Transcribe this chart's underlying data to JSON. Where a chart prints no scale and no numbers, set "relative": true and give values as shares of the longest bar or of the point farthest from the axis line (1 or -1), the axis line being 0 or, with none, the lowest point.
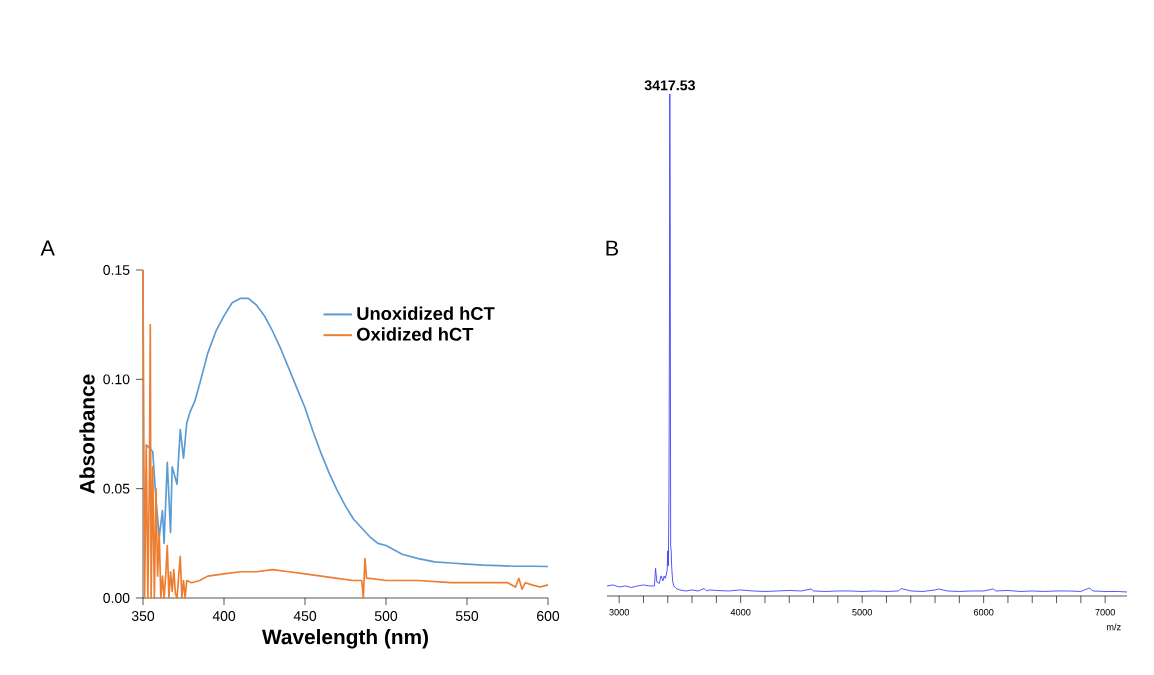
{
  "chart_data": [
    {
      "type": "line",
      "xlabel": "Wavelength (nm)",
      "ylabel": "Absorbance",
      "xlim": [
        350,
        600
      ],
      "ylim": [
        0,
        0.15
      ],
      "xticks": [
        350,
        400,
        450,
        500,
        550,
        600
      ],
      "yticks": [
        {
          "value": 0,
          "label": "0.00"
        },
        {
          "value": 0.05,
          "label": "0.05"
        },
        {
          "value": 0.1,
          "label": "0.10"
        },
        {
          "value": 0.15,
          "label": "0.15"
        }
      ],
      "legend": "top right",
      "annotations": [
        "A"
      ],
      "series": [
        {
          "name": "Unoxidized hCT",
          "color": "#5b9bd5",
          "x": [
            352,
            356,
            358,
            360,
            362,
            363,
            365,
            367,
            368,
            371,
            373,
            375,
            377,
            379,
            382,
            385,
            390,
            395,
            400,
            405,
            410,
            415,
            420,
            425,
            430,
            435,
            440,
            445,
            450,
            455,
            460,
            465,
            470,
            475,
            480,
            485,
            490,
            495,
            500,
            510,
            520,
            530,
            540,
            550,
            560,
            570,
            580,
            590,
            600
          ],
          "values": [
            0.07,
            0.067,
            0.045,
            0.028,
            0.04,
            0.025,
            0.062,
            0.03,
            0.06,
            0.052,
            0.077,
            0.064,
            0.08,
            0.085,
            0.09,
            0.098,
            0.112,
            0.122,
            0.129,
            0.135,
            0.137,
            0.137,
            0.134,
            0.129,
            0.122,
            0.114,
            0.105,
            0.096,
            0.087,
            0.076,
            0.066,
            0.057,
            0.049,
            0.042,
            0.036,
            0.032,
            0.028,
            0.025,
            0.024,
            0.02,
            0.018,
            0.0165,
            0.016,
            0.0155,
            0.015,
            0.0148,
            0.0145,
            0.0145,
            0.0144
          ]
        },
        {
          "name": "Oxidized hCT",
          "color": "#ed7d31",
          "x": [
            350,
            351,
            352,
            353,
            354,
            354.5,
            355,
            356,
            357,
            358,
            359,
            360,
            361,
            362,
            363,
            364,
            365,
            366,
            367,
            368,
            369,
            370,
            371,
            372,
            373,
            374,
            375,
            376,
            377,
            380,
            385,
            390,
            400,
            410,
            420,
            430,
            440,
            450,
            460,
            470,
            480,
            485,
            486,
            487,
            488,
            490,
            500,
            520,
            540,
            560,
            575,
            580,
            582,
            584,
            586,
            590,
            595,
            600
          ],
          "values": [
            0.15,
            0,
            0.07,
            0,
            0.06,
            0.125,
            0,
            0.06,
            0,
            0.05,
            0.01,
            0.03,
            0,
            0.01,
            0,
            0.01,
            0.024,
            0,
            0.012,
            0.003,
            0.013,
            0.002,
            0,
            0.01,
            0.019,
            0,
            0.008,
            0,
            0.008,
            0.007,
            0.008,
            0.01,
            0.011,
            0.012,
            0.012,
            0.013,
            0.012,
            0.011,
            0.01,
            0.009,
            0.008,
            0.008,
            0,
            0.018,
            0.009,
            0.009,
            0.008,
            0.008,
            0.007,
            0.007,
            0.007,
            0.005,
            0.009,
            0.004,
            0.007,
            0.006,
            0.005,
            0.006
          ]
        }
      ]
    },
    {
      "type": "line",
      "relative": true,
      "xlabel": "m/z",
      "xlim": [
        2900,
        7180
      ],
      "xticks": [
        3000,
        {
          "value": 3200,
          "label": null
        },
        {
          "value": 3400,
          "label": null
        },
        {
          "value": 3600,
          "label": null
        },
        {
          "value": 3800,
          "label": null
        },
        4000,
        {
          "value": 4200,
          "label": null
        },
        {
          "value": 4400,
          "label": null
        },
        {
          "value": 4600,
          "label": null
        },
        {
          "value": 4800,
          "label": null
        },
        5000,
        {
          "value": 5200,
          "label": null
        },
        {
          "value": 5400,
          "label": null
        },
        {
          "value": 5600,
          "label": null
        },
        {
          "value": 5800,
          "label": null
        },
        6000,
        {
          "value": 6200,
          "label": null
        },
        {
          "value": 6400,
          "label": null
        },
        {
          "value": 6600,
          "label": null
        },
        {
          "value": 6800,
          "label": null
        },
        7000
      ],
      "annotations": [
        "B",
        {
          "text": "3417.53",
          "x": 3417.53,
          "y": 1
        }
      ],
      "series": [
        {
          "color": "#3333ff",
          "x": [
            2900,
            2950,
            3000,
            3050,
            3100,
            3150,
            3200,
            3250,
            3290,
            3300,
            3310,
            3330,
            3345,
            3360,
            3370,
            3380,
            3395,
            3400,
            3405,
            3410,
            3414,
            3417,
            3420,
            3424,
            3428,
            3432,
            3440,
            3450,
            3470,
            3500,
            3550,
            3600,
            3650,
            3700,
            3720,
            3740,
            3800,
            3900,
            4000,
            4100,
            4200,
            4300,
            4400,
            4500,
            4580,
            4600,
            4700,
            4800,
            4900,
            5000,
            5100,
            5200,
            5300,
            5320,
            5400,
            5500,
            5600,
            5630,
            5700,
            5800,
            5900,
            6000,
            6080,
            6100,
            6200,
            6300,
            6400,
            6500,
            6600,
            6700,
            6800,
            6870,
            6900,
            7000,
            7100,
            7180
          ],
          "values": [
            0.02,
            0.022,
            0.018,
            0.02,
            0.017,
            0.02,
            0.022,
            0.02,
            0.02,
            0.055,
            0.028,
            0.025,
            0.04,
            0.03,
            0.04,
            0.035,
            0.05,
            0.09,
            0.06,
            0.2,
            0.55,
            1,
            0.75,
            0.1,
            0.09,
            0.06,
            0.03,
            0.02,
            0.015,
            0.012,
            0.01,
            0.012,
            0.01,
            0.015,
            0.01,
            0.012,
            0.011,
            0.01,
            0.012,
            0.01,
            0.009,
            0.01,
            0.011,
            0.01,
            0.014,
            0.01,
            0.009,
            0.01,
            0.01,
            0.009,
            0.01,
            0.009,
            0.01,
            0.015,
            0.01,
            0.009,
            0.012,
            0.014,
            0.01,
            0.009,
            0.01,
            0.01,
            0.014,
            0.01,
            0.011,
            0.009,
            0.01,
            0.009,
            0.01,
            0.01,
            0.009,
            0.016,
            0.01,
            0.009,
            0.009,
            0.008
          ]
        }
      ]
    }
  ]
}
